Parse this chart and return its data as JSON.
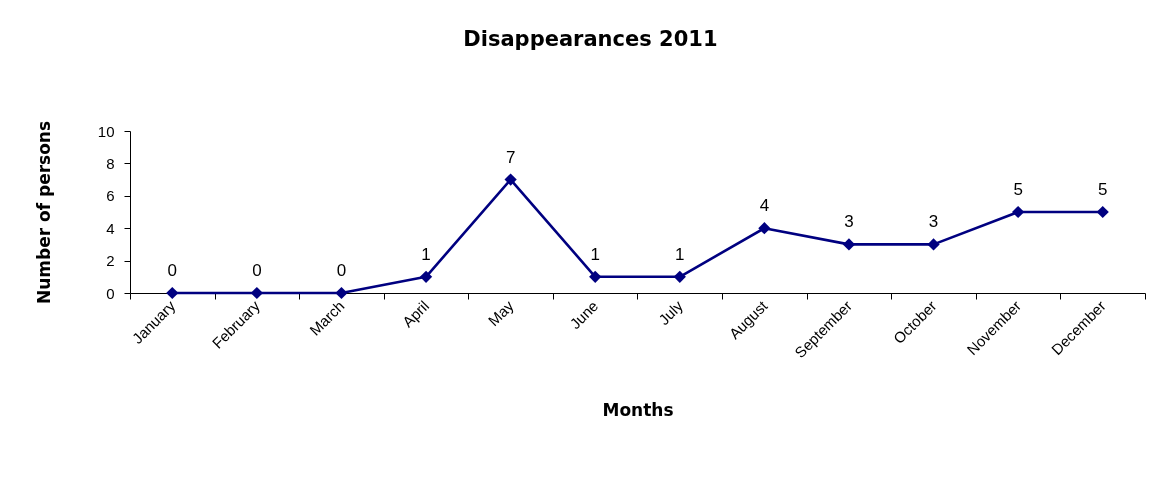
{
  "chart_data": {
    "type": "line",
    "title": "Disappearances 2011",
    "xlabel": "Months",
    "ylabel": "Number of persons",
    "categories": [
      "January",
      "February",
      "March",
      "April",
      "May",
      "June",
      "July",
      "August",
      "September",
      "October",
      "November",
      "December"
    ],
    "series": [
      {
        "color": "#000080",
        "values": [
          0,
          0,
          0,
          1,
          7,
          1,
          1,
          4,
          3,
          3,
          5,
          5
        ]
      }
    ],
    "ylim": [
      0,
      10
    ],
    "yticks": [
      0,
      2,
      4,
      6,
      8,
      10
    ],
    "marker": "diamond",
    "line_style": "solid",
    "data_labels": true
  }
}
